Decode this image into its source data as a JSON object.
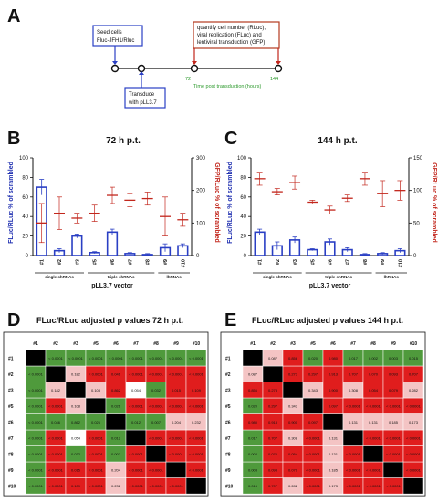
{
  "panels": {
    "A": "A",
    "B": "B",
    "C": "C",
    "D": "D",
    "E": "E"
  },
  "timeline": {
    "box_seed": [
      "Seed cells",
      "Fluc-JFH1/Rluc"
    ],
    "box_transduce": [
      "Transduce",
      "with pLL3.7"
    ],
    "box_quantify": [
      "quantify cell number (RLuc),",
      "viral replication (FLuc) and",
      "lentiviral transduction (GFP)"
    ],
    "tick_72": "72",
    "tick_144": "144",
    "axis_label": "Time post transduction (hours)",
    "colors": {
      "blue": "#2a3fc4",
      "red": "#c2261c",
      "green": "#2e9a2e"
    }
  },
  "charts": [
    {
      "title": "72 h p.t.",
      "ylabel_left": "FLuc/RLuc % of scrambled",
      "ylabel_right": "GFP/RLuc % of scrambled",
      "left_ticks": [
        "0",
        "20",
        "40",
        "60",
        "80",
        "100"
      ],
      "right_ticks": [
        "0",
        "100",
        "200",
        "300"
      ],
      "chart_data": {
        "type": "bar",
        "categories": [
          "#1",
          "#2",
          "#3",
          "#5",
          "#6",
          "#7",
          "#8",
          "#9",
          "#10"
        ],
        "ylim_left": [
          0,
          100
        ],
        "ylim_right": [
          0,
          300
        ],
        "series": [
          {
            "values": [
              70,
              5,
              20,
              3,
              24,
              2,
              1,
              8,
              10
            ],
            "err": [
              8,
              2,
              2,
              1,
              3,
              1,
              1,
              4,
              2
            ]
          },
          {
            "values": [
              100,
              130,
              115,
              130,
              185,
              170,
              175,
              120,
              110
            ],
            "err": [
              60,
              50,
              15,
              25,
              25,
              20,
              20,
              60,
              20
            ]
          }
        ]
      }
    },
    {
      "title": "144 h p.t.",
      "ylabel_left": "FLuc/RLuc % of scrambled",
      "ylabel_right": "GFP/RLuc % of scrambled",
      "left_ticks": [
        "0",
        "20",
        "40",
        "60",
        "80",
        "100"
      ],
      "right_ticks": [
        "0",
        "50",
        "100",
        "150"
      ],
      "chart_data": {
        "type": "bar",
        "categories": [
          "#1",
          "#2",
          "#3",
          "#5",
          "#6",
          "#7",
          "#8",
          "#9",
          "#10"
        ],
        "ylim_left": [
          0,
          100
        ],
        "ylim_right": [
          0,
          150
        ],
        "series": [
          {
            "values": [
              24,
              10,
              16,
              6,
              14,
              6,
              1,
              2,
              5
            ],
            "err": [
              3,
              4,
              3,
              1,
              3,
              2,
              1,
              1,
              2
            ]
          },
          {
            "values": [
              118,
              98,
              112,
              82,
              70,
              88,
              118,
              95,
              100
            ],
            "err": [
              10,
              5,
              10,
              3,
              6,
              5,
              10,
              20,
              15
            ]
          }
        ]
      }
    }
  ],
  "chart_labels": {
    "groups": [
      "single shRNAs",
      "triple shRNAs",
      "lhRNAs"
    ],
    "vector": "pLL3.7 vector"
  },
  "heatmaps": [
    {
      "title": "FLuc/RLuc adjusted p values 72 h p.t.",
      "labels": [
        "#1",
        "#2",
        "#3",
        "#5",
        "#6",
        "#7",
        "#8",
        "#9",
        "#10"
      ],
      "cells": [
        [
          "",
          "< 0.0001",
          "< 0.0001",
          "< 0.0001",
          "< 0.0001",
          "< 0.0001",
          "< 0.0001",
          "< 0.0001",
          "< 0.0001"
        ],
        [
          "< 0.0001",
          "",
          "0.182",
          "< 0.0001",
          "0.046",
          "< 0.0001",
          "< 0.0001",
          "< 0.0001",
          "< 0.0001"
        ],
        [
          "< 0.0001",
          "0.182",
          "",
          "0.108",
          "0.862",
          "0.054",
          "0.032",
          "0.015",
          "0.109"
        ],
        [
          "< 0.0001",
          "< 0.0001",
          "0.108",
          "",
          "0.026",
          "< 0.0001",
          "< 0.0001",
          "< 0.0001",
          "< 0.0001"
        ],
        [
          "< 0.0001",
          "0.046",
          "0.862",
          "0.026",
          "",
          "0.012",
          "0.007",
          "0.204",
          "0.232"
        ],
        [
          "< 0.0001",
          "< 0.0001",
          "0.054",
          "< 0.0001",
          "0.012",
          "",
          "< 0.0001",
          "< 0.0001",
          "< 0.0001"
        ],
        [
          "< 0.0001",
          "< 0.0001",
          "0.032",
          "< 0.0001",
          "0.007",
          "< 0.0001",
          "",
          "< 0.0001",
          "< 0.0001"
        ],
        [
          "< 0.0001",
          "< 0.0001",
          "0.015",
          "< 0.0001",
          "0.204",
          "< 0.0001",
          "< 0.0001",
          "",
          "< 0.0001"
        ],
        [
          "< 0.0001",
          "< 0.0001",
          "0.109",
          "< 0.0001",
          "0.232",
          "< 0.0001",
          "< 0.0001",
          "< 0.0001",
          ""
        ]
      ],
      "colors": [
        [
          "k",
          "g",
          "g",
          "g",
          "g",
          "g",
          "g",
          "g",
          "g"
        ],
        [
          "g",
          "k",
          "p",
          "r",
          "r",
          "r",
          "r",
          "r",
          "r"
        ],
        [
          "g",
          "p",
          "k",
          "p",
          "r",
          "w",
          "g",
          "r",
          "r"
        ],
        [
          "g",
          "r",
          "p",
          "k",
          "g",
          "r",
          "r",
          "r",
          "r"
        ],
        [
          "g",
          "g",
          "g",
          "g",
          "k",
          "g",
          "g",
          "p",
          "p"
        ],
        [
          "g",
          "r",
          "w",
          "r",
          "g",
          "k",
          "r",
          "r",
          "r"
        ],
        [
          "g",
          "r",
          "g",
          "r",
          "g",
          "r",
          "k",
          "r",
          "r"
        ],
        [
          "g",
          "r",
          "r",
          "r",
          "p",
          "r",
          "r",
          "k",
          "r"
        ],
        [
          "g",
          "r",
          "r",
          "r",
          "p",
          "r",
          "r",
          "r",
          "k"
        ]
      ]
    },
    {
      "title": "FLuc/RLuc adjusted p values 144 h p.t.",
      "labels": [
        "#1",
        "#2",
        "#3",
        "#5",
        "#6",
        "#7",
        "#8",
        "#9",
        "#10"
      ],
      "cells": [
        [
          "",
          "0.087",
          "0.856",
          "0.020",
          "0.980",
          "0.017",
          "0.002",
          "0.003",
          "0.015"
        ],
        [
          "0.087",
          "",
          "0.273",
          "0.297",
          "0.913",
          "0.707",
          "0.070",
          "0.093",
          "0.707"
        ],
        [
          "0.856",
          "0.273",
          "",
          "0.343",
          "0.900",
          "0.308",
          "0.054",
          "0.079",
          "0.282"
        ],
        [
          "0.020",
          "0.297",
          "0.343",
          "",
          "0.097",
          "< 0.0001",
          "< 0.0001",
          "< 0.0001",
          "< 0.0001"
        ],
        [
          "0.980",
          "0.913",
          "0.900",
          "0.097",
          "",
          "0.131",
          "0.131",
          "0.185",
          "0.173"
        ],
        [
          "0.017",
          "0.707",
          "0.308",
          "< 0.0001",
          "0.131",
          "",
          "< 0.0001",
          "< 0.0001",
          "< 0.0001"
        ],
        [
          "0.002",
          "0.070",
          "0.054",
          "< 0.0001",
          "0.131",
          "< 0.0001",
          "",
          "< 0.0001",
          "< 0.0001"
        ],
        [
          "0.003",
          "0.093",
          "0.079",
          "< 0.0001",
          "0.185",
          "< 0.0001",
          "< 0.0001",
          "",
          "< 0.0001"
        ],
        [
          "0.015",
          "0.707",
          "0.282",
          "< 0.0001",
          "0.173",
          "< 0.0001",
          "< 0.0001",
          "< 0.0001",
          ""
        ]
      ],
      "colors": [
        [
          "k",
          "p",
          "r",
          "g",
          "r",
          "g",
          "g",
          "g",
          "g"
        ],
        [
          "p",
          "k",
          "r",
          "r",
          "r",
          "r",
          "r",
          "r",
          "r"
        ],
        [
          "r",
          "r",
          "k",
          "p",
          "r",
          "p",
          "r",
          "r",
          "p"
        ],
        [
          "g",
          "r",
          "p",
          "k",
          "r",
          "r",
          "r",
          "r",
          "r"
        ],
        [
          "r",
          "r",
          "r",
          "r",
          "k",
          "p",
          "p",
          "p",
          "p"
        ],
        [
          "g",
          "r",
          "p",
          "r",
          "p",
          "k",
          "r",
          "r",
          "r"
        ],
        [
          "g",
          "r",
          "r",
          "r",
          "p",
          "r",
          "k",
          "r",
          "r"
        ],
        [
          "g",
          "r",
          "r",
          "r",
          "p",
          "r",
          "r",
          "k",
          "r"
        ],
        [
          "g",
          "r",
          "p",
          "r",
          "p",
          "r",
          "r",
          "r",
          "k"
        ]
      ]
    }
  ],
  "heatmap_palette": {
    "k": "#000000",
    "g": "#4f9a3c",
    "r": "#e01d1d",
    "p": "#f4c4c4",
    "w": "#ffffff"
  }
}
